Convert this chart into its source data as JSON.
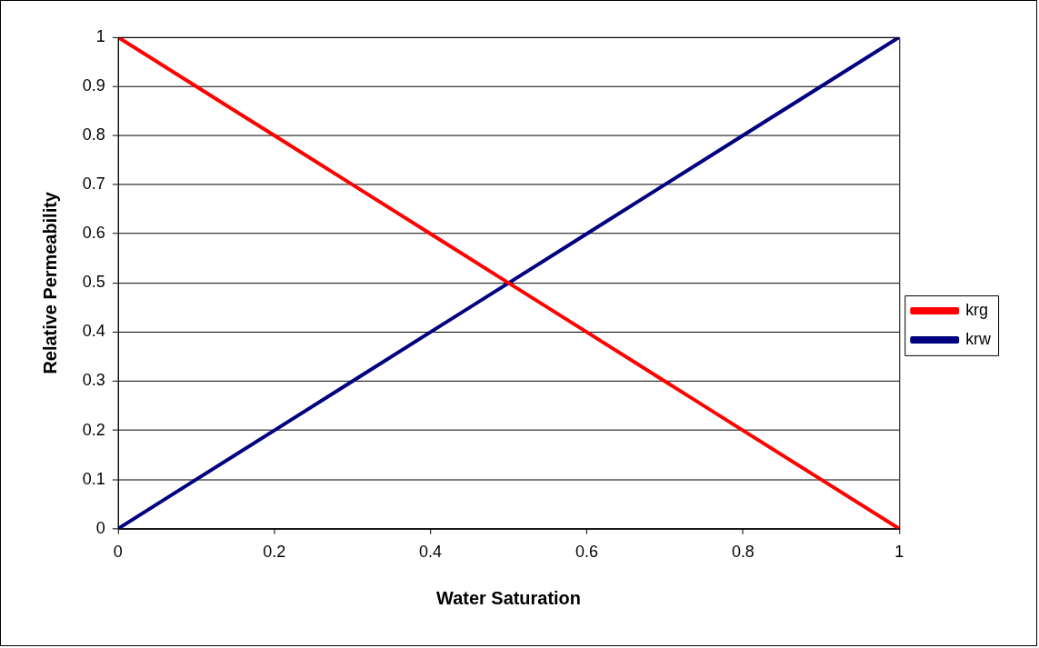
{
  "chart_data": {
    "type": "line",
    "xlabel": "Water Saturation",
    "ylabel": "Relative Permeability",
    "x": [
      0,
      0.1,
      0.2,
      0.3,
      0.4,
      0.5,
      0.6,
      0.7,
      0.8,
      0.9,
      1
    ],
    "series": [
      {
        "name": "krg",
        "color": "#ff0000",
        "values": [
          1,
          0.9,
          0.8,
          0.7,
          0.6,
          0.5,
          0.4,
          0.3,
          0.2,
          0.1,
          0
        ]
      },
      {
        "name": "krw",
        "color": "#000080",
        "values": [
          0,
          0.1,
          0.2,
          0.3,
          0.4,
          0.5,
          0.6,
          0.7,
          0.8,
          0.9,
          1
        ]
      }
    ],
    "xlim": [
      0,
      1
    ],
    "xticks": [
      0,
      0.2,
      0.4,
      0.6,
      0.8,
      1
    ],
    "ylim": [
      0,
      1
    ],
    "yticks": [
      0,
      0.1,
      0.2,
      0.3,
      0.4,
      0.5,
      0.6,
      0.7,
      0.8,
      0.9,
      1
    ],
    "grid": "y",
    "legend": "right",
    "marker": "none",
    "line_style": "solid"
  }
}
